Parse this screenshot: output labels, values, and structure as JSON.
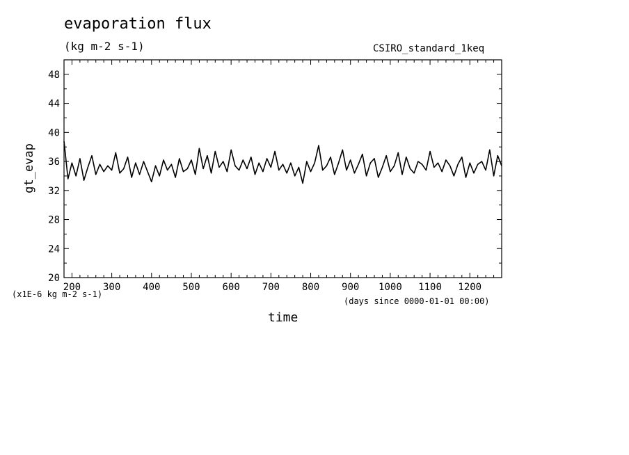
{
  "chart_data": {
    "type": "line",
    "title": "evaporation flux",
    "units": "(kg m-2 s-1)",
    "run_label": "CSIRO_standard_1keq",
    "xlabel": "time",
    "ylabel": "gt_evap",
    "scale_note": "(x1E-6 kg m-2 s-1)",
    "time_note": "(days since 0000-01-01 00:00)",
    "xlim": [
      180,
      1280
    ],
    "ylim": [
      20,
      50
    ],
    "xticks": [
      200,
      300,
      400,
      500,
      600,
      700,
      800,
      900,
      1000,
      1100,
      1200
    ],
    "yticks": [
      20,
      24,
      28,
      32,
      36,
      40,
      44,
      48
    ],
    "series": [
      {
        "name": "",
        "x": [
          180,
          190,
          200,
          210,
          220,
          230,
          240,
          250,
          260,
          270,
          280,
          290,
          300,
          310,
          320,
          330,
          340,
          350,
          360,
          370,
          380,
          390,
          400,
          410,
          420,
          430,
          440,
          450,
          460,
          470,
          480,
          490,
          500,
          510,
          520,
          530,
          540,
          550,
          560,
          570,
          580,
          590,
          600,
          610,
          620,
          630,
          640,
          650,
          660,
          670,
          680,
          690,
          700,
          710,
          720,
          730,
          740,
          750,
          760,
          770,
          780,
          790,
          800,
          810,
          820,
          830,
          840,
          850,
          860,
          870,
          880,
          890,
          900,
          910,
          920,
          930,
          940,
          950,
          960,
          970,
          980,
          990,
          1000,
          1010,
          1020,
          1030,
          1040,
          1050,
          1060,
          1070,
          1080,
          1090,
          1100,
          1110,
          1120,
          1130,
          1140,
          1150,
          1160,
          1170,
          1180,
          1190,
          1200,
          1210,
          1220,
          1230,
          1240,
          1250,
          1260,
          1270,
          1280
        ],
        "y": [
          38.8,
          33.6,
          35.8,
          34.0,
          36.4,
          33.4,
          35.2,
          36.8,
          34.2,
          35.6,
          34.6,
          35.4,
          34.8,
          37.2,
          34.4,
          35.0,
          36.6,
          33.8,
          35.8,
          34.2,
          36.0,
          34.6,
          33.2,
          35.4,
          34.0,
          36.2,
          34.8,
          35.6,
          33.8,
          36.4,
          34.6,
          35.0,
          36.2,
          34.2,
          37.8,
          35.0,
          36.8,
          34.4,
          37.4,
          35.2,
          36.0,
          34.6,
          37.6,
          35.4,
          34.8,
          36.2,
          35.0,
          36.6,
          34.2,
          35.8,
          34.6,
          36.4,
          35.2,
          37.4,
          34.8,
          35.6,
          34.4,
          35.8,
          34.0,
          35.2,
          33.0,
          36.0,
          34.6,
          35.8,
          38.2,
          34.8,
          35.4,
          36.6,
          34.2,
          35.8,
          37.6,
          34.8,
          36.2,
          34.4,
          35.6,
          37.0,
          34.0,
          35.8,
          36.4,
          33.8,
          35.2,
          36.8,
          34.6,
          35.4,
          37.2,
          34.2,
          36.6,
          35.0,
          34.4,
          36.0,
          35.6,
          34.8,
          37.4,
          35.2,
          35.8,
          34.6,
          36.2,
          35.4,
          34.0,
          35.6,
          36.6,
          33.8,
          35.8,
          34.4,
          35.6,
          36.0,
          34.8,
          37.6,
          34.0,
          36.8,
          35.4
        ]
      }
    ],
    "grid": false,
    "line_color": "#000000"
  }
}
